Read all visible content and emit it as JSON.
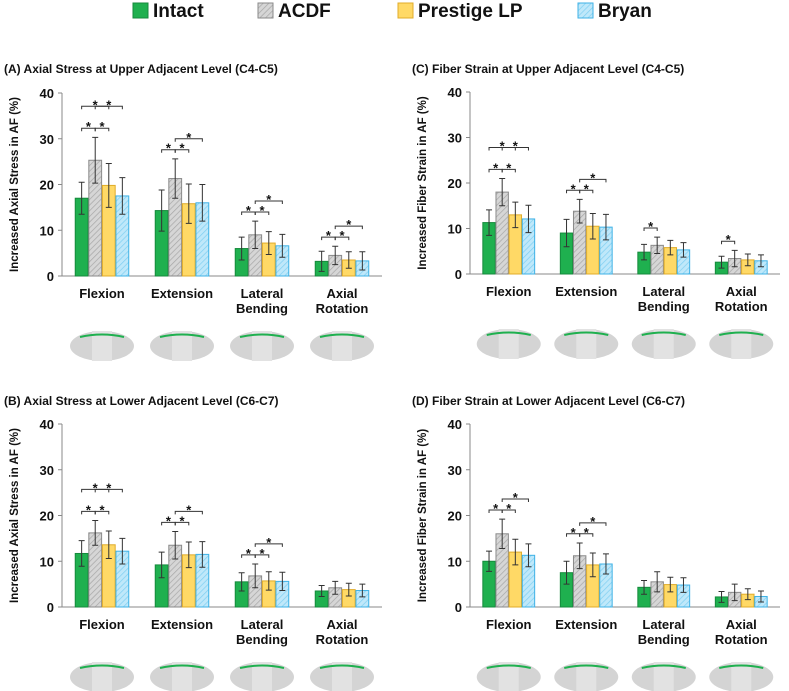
{
  "legend": [
    {
      "name": "Intact",
      "color": "#1fb04f",
      "border": "#158a3c",
      "hatch": false
    },
    {
      "name": "ACDF",
      "color": "#cfcfcf",
      "border": "#8a8a8a",
      "hatch": true
    },
    {
      "name": "Prestige LP",
      "color": "#ffd966",
      "border": "#e0ac2a",
      "hatch": false
    },
    {
      "name": "Bryan",
      "color": "#a8def5",
      "border": "#3fb2e6",
      "hatch": true
    }
  ],
  "chart_data": [
    {
      "type": "bar",
      "title": "(A) Axial Stress at Upper Adjacent Level (C4-C5)",
      "ylabel": "Increased Axial Stress in AF (%)",
      "categories": [
        "Flexion",
        "Extension",
        "Lateral Bending",
        "Axial Rotation"
      ],
      "ylim": [
        0,
        40
      ],
      "yticks": [
        0,
        10,
        20,
        30,
        40
      ],
      "series": [
        {
          "values": [
            17,
            14.3,
            6,
            3.2
          ],
          "errors": [
            3.5,
            4.5,
            2.5,
            2.2
          ]
        },
        {
          "values": [
            25.3,
            21.3,
            9,
            4.5
          ],
          "errors": [
            5,
            4.3,
            3,
            2
          ]
        },
        {
          "values": [
            19.8,
            15.8,
            7.2,
            3.5
          ],
          "errors": [
            4.8,
            4.3,
            2.5,
            1.8
          ]
        },
        {
          "values": [
            17.5,
            16,
            6.6,
            3.3
          ],
          "errors": [
            4,
            4,
            2.5,
            2
          ]
        }
      ],
      "brackets": [
        {
          "category": 0,
          "from": 0,
          "to": 1,
          "label": "*"
        },
        {
          "category": 0,
          "from": 1,
          "to": 2,
          "label": "*"
        },
        {
          "category": 0,
          "from": 0,
          "to": 2,
          "label": "*"
        },
        {
          "category": 0,
          "from": 1,
          "to": 3,
          "label": "*"
        },
        {
          "category": 1,
          "from": 0,
          "to": 1,
          "label": "*"
        },
        {
          "category": 1,
          "from": 1,
          "to": 2,
          "label": "*"
        },
        {
          "category": 1,
          "from": 1,
          "to": 3,
          "label": "*"
        },
        {
          "category": 2,
          "from": 0,
          "to": 1,
          "label": "*"
        },
        {
          "category": 2,
          "from": 1,
          "to": 2,
          "label": "*"
        },
        {
          "category": 2,
          "from": 1,
          "to": 3,
          "label": "*"
        },
        {
          "category": 3,
          "from": 0,
          "to": 1,
          "label": "*"
        },
        {
          "category": 3,
          "from": 1,
          "to": 2,
          "label": "*"
        },
        {
          "category": 3,
          "from": 1,
          "to": 3,
          "label": "*"
        }
      ]
    },
    {
      "type": "bar",
      "title": "(B) Axial Stress at Lower Adjacent Level (C6-C7)",
      "ylabel": "Increased Axial Stress in AF (%)",
      "categories": [
        "Flexion",
        "Extension",
        "Lateral Bending",
        "Axial Rotation"
      ],
      "ylim": [
        0,
        40
      ],
      "yticks": [
        0,
        10,
        20,
        30,
        40
      ],
      "series": [
        {
          "values": [
            11.7,
            9.2,
            5.5,
            3.5
          ],
          "errors": [
            2.8,
            2.8,
            2,
            1.2
          ]
        },
        {
          "values": [
            16.2,
            13.5,
            6.8,
            4.2
          ],
          "errors": [
            2.7,
            3,
            2.6,
            1.4
          ]
        },
        {
          "values": [
            13.6,
            11.4,
            5.7,
            3.8
          ],
          "errors": [
            3,
            2.8,
            2,
            1.4
          ]
        },
        {
          "values": [
            12.2,
            11.5,
            5.6,
            3.6
          ],
          "errors": [
            2.8,
            2.8,
            2,
            1.4
          ]
        }
      ],
      "brackets": [
        {
          "category": 0,
          "from": 0,
          "to": 1,
          "label": "*"
        },
        {
          "category": 0,
          "from": 1,
          "to": 2,
          "label": "*"
        },
        {
          "category": 0,
          "from": 0,
          "to": 2,
          "label": "*"
        },
        {
          "category": 0,
          "from": 1,
          "to": 3,
          "label": "*"
        },
        {
          "category": 1,
          "from": 0,
          "to": 1,
          "label": "*"
        },
        {
          "category": 1,
          "from": 1,
          "to": 2,
          "label": "*"
        },
        {
          "category": 1,
          "from": 1,
          "to": 3,
          "label": "*"
        },
        {
          "category": 2,
          "from": 0,
          "to": 1,
          "label": "*"
        },
        {
          "category": 2,
          "from": 1,
          "to": 2,
          "label": "*"
        },
        {
          "category": 2,
          "from": 1,
          "to": 3,
          "label": "*"
        }
      ]
    },
    {
      "type": "bar",
      "title": "(C) Fiber Strain at Upper Adjacent Level (C4-C5)",
      "ylabel": "Increased Fiber Strain in AF (%)",
      "categories": [
        "Flexion",
        "Extension",
        "Lateral Bending",
        "Axial Rotation"
      ],
      "ylim": [
        0,
        40
      ],
      "yticks": [
        0,
        10,
        20,
        30,
        40
      ],
      "series": [
        {
          "values": [
            11.3,
            9,
            4.8,
            2.6
          ],
          "errors": [
            2.8,
            3,
            1.7,
            1.3
          ]
        },
        {
          "values": [
            18,
            13.8,
            6.3,
            3.4
          ],
          "errors": [
            3,
            2.6,
            1.8,
            1.8
          ]
        },
        {
          "values": [
            13,
            10.5,
            5.8,
            3.1
          ],
          "errors": [
            2.8,
            2.8,
            1.6,
            1.3
          ]
        },
        {
          "values": [
            12.1,
            10.3,
            5.3,
            2.9
          ],
          "errors": [
            3,
            2.8,
            1.6,
            1.3
          ]
        }
      ],
      "brackets": [
        {
          "category": 0,
          "from": 0,
          "to": 1,
          "label": "*"
        },
        {
          "category": 0,
          "from": 1,
          "to": 2,
          "label": "*"
        },
        {
          "category": 0,
          "from": 0,
          "to": 2,
          "label": "*"
        },
        {
          "category": 0,
          "from": 1,
          "to": 3,
          "label": "*"
        },
        {
          "category": 1,
          "from": 0,
          "to": 1,
          "label": "*"
        },
        {
          "category": 1,
          "from": 1,
          "to": 2,
          "label": "*"
        },
        {
          "category": 1,
          "from": 1,
          "to": 3,
          "label": "*"
        },
        {
          "category": 2,
          "from": 0,
          "to": 1,
          "label": "*"
        },
        {
          "category": 3,
          "from": 0,
          "to": 1,
          "label": "*"
        }
      ]
    },
    {
      "type": "bar",
      "title": "(D) Fiber Strain at Lower Adjacent Level (C6-C7)",
      "ylabel": "Increased Fiber Strain in AF (%)",
      "categories": [
        "Flexion",
        "Extension",
        "Lateral Bending",
        "Axial Rotation"
      ],
      "ylim": [
        0,
        40
      ],
      "yticks": [
        0,
        10,
        20,
        30,
        40
      ],
      "series": [
        {
          "values": [
            10,
            7.5,
            4.3,
            2.2
          ],
          "errors": [
            2.2,
            2.5,
            1.5,
            1.2
          ]
        },
        {
          "values": [
            16,
            11.2,
            5.5,
            3.2
          ],
          "errors": [
            3.2,
            2.8,
            2.2,
            1.8
          ]
        },
        {
          "values": [
            12,
            9.2,
            4.9,
            2.8
          ],
          "errors": [
            2.8,
            2.6,
            1.6,
            1.2
          ]
        },
        {
          "values": [
            11.3,
            9.4,
            4.8,
            2.3
          ],
          "errors": [
            2.5,
            2.2,
            1.6,
            1.2
          ]
        }
      ],
      "brackets": [
        {
          "category": 0,
          "from": 0,
          "to": 1,
          "label": "*"
        },
        {
          "category": 0,
          "from": 1,
          "to": 2,
          "label": "*"
        },
        {
          "category": 0,
          "from": 1,
          "to": 3,
          "label": "*"
        },
        {
          "category": 1,
          "from": 0,
          "to": 1,
          "label": "*"
        },
        {
          "category": 1,
          "from": 1,
          "to": 2,
          "label": "*"
        },
        {
          "category": 1,
          "from": 1,
          "to": 3,
          "label": "*"
        }
      ]
    }
  ]
}
